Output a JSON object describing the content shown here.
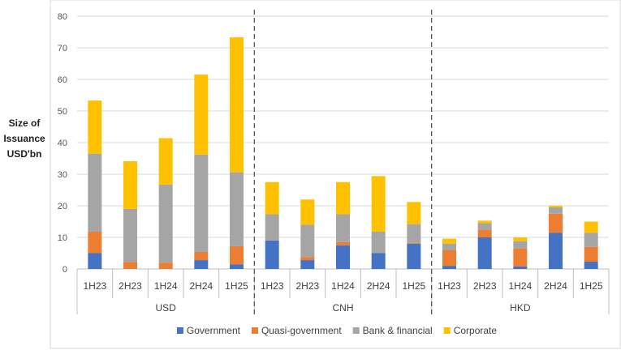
{
  "chart_data": {
    "type": "stacked-bar",
    "ylabel": [
      "Size of",
      "Issuance",
      "USD'bn"
    ],
    "ylim": [
      0,
      80
    ],
    "yticks": [
      0,
      10,
      20,
      30,
      40,
      50,
      60,
      70,
      80
    ],
    "grid": true,
    "legend_position": "bottom",
    "groups": [
      {
        "name": "USD",
        "categories": [
          "1H23",
          "2H23",
          "1H24",
          "2H24",
          "1H25"
        ]
      },
      {
        "name": "CNH",
        "categories": [
          "1H23",
          "2H23",
          "1H24",
          "2H24",
          "1H25"
        ]
      },
      {
        "name": "HKD",
        "categories": [
          "1H23",
          "2H23",
          "1H24",
          "2H24",
          "1H25"
        ]
      }
    ],
    "series": [
      {
        "name": "Government",
        "color": "#4472c4",
        "values": [
          5,
          0,
          0,
          2.8,
          1.5,
          9,
          2.8,
          7.5,
          5,
          8,
          1,
          10,
          0.8,
          11.5,
          2.3
        ]
      },
      {
        "name": "Quasi-government",
        "color": "#ed7d31",
        "values": [
          6.8,
          2.2,
          2,
          2.6,
          5.7,
          0,
          1,
          1,
          0,
          0.3,
          5,
          2.5,
          5.7,
          6,
          4.7
        ]
      },
      {
        "name": "Bank & financial",
        "color": "#a5a5a5",
        "values": [
          24.7,
          16.8,
          24.7,
          30.8,
          23.4,
          8.3,
          10.2,
          8.8,
          6.8,
          5.9,
          2,
          2,
          2.3,
          2,
          4.5
        ]
      },
      {
        "name": "Corporate",
        "color": "#ffc000",
        "values": [
          16.8,
          15.1,
          14.7,
          25.3,
          42.7,
          10.2,
          8,
          10.2,
          17.6,
          7,
          1.6,
          0.8,
          1.2,
          0.5,
          3.5
        ]
      }
    ]
  }
}
